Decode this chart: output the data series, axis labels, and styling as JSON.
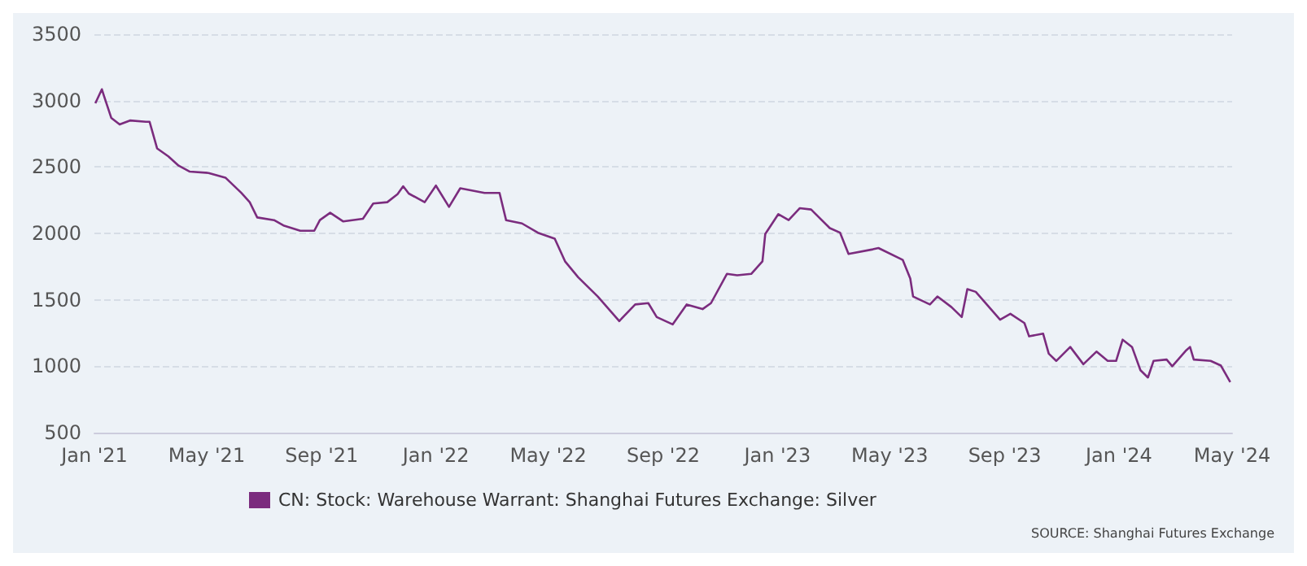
{
  "chart_data": {
    "type": "line",
    "x": [
      "2021-01-02",
      "2021-01-09",
      "2021-01-11",
      "2021-01-19",
      "2021-01-28",
      "2021-02-08",
      "2021-02-25",
      "2021-03-01",
      "2021-03-09",
      "2021-03-21",
      "2021-04-01",
      "2021-04-13",
      "2021-05-03",
      "2021-05-21",
      "2021-06-07",
      "2021-06-16",
      "2021-06-24",
      "2021-07-12",
      "2021-07-22",
      "2021-08-09",
      "2021-08-24",
      "2021-08-30",
      "2021-09-10",
      "2021-09-24",
      "2021-10-15",
      "2021-10-26",
      "2021-11-10",
      "2021-11-21",
      "2021-11-27",
      "2021-12-03",
      "2021-12-20",
      "2022-01-01",
      "2022-01-15",
      "2022-01-27",
      "2022-02-22",
      "2022-03-10",
      "2022-03-17",
      "2022-04-03",
      "2022-04-20",
      "2022-05-08",
      "2022-05-19",
      "2022-06-02",
      "2022-06-23",
      "2022-07-16",
      "2022-08-02",
      "2022-08-16",
      "2022-08-25",
      "2022-09-11",
      "2022-09-26",
      "2022-10-13",
      "2022-10-22",
      "2022-11-08",
      "2022-11-19",
      "2022-12-04",
      "2022-12-16",
      "2022-12-19",
      "2023-01-02",
      "2023-01-13",
      "2023-01-25",
      "2023-02-06",
      "2023-02-26",
      "2023-03-09",
      "2023-03-18",
      "2023-04-13",
      "2023-04-19",
      "2023-05-15",
      "2023-05-23",
      "2023-05-26",
      "2023-06-13",
      "2023-06-21",
      "2023-07-06",
      "2023-07-17",
      "2023-07-23",
      "2023-08-01",
      "2023-08-27",
      "2023-09-07",
      "2023-09-22",
      "2023-09-27",
      "2023-10-12",
      "2023-10-18",
      "2023-10-26",
      "2023-11-10",
      "2023-11-24",
      "2023-12-08",
      "2023-12-20",
      "2023-12-29",
      "2024-01-05",
      "2024-01-15",
      "2024-01-24",
      "2024-02-01",
      "2024-02-07",
      "2024-02-21",
      "2024-02-27",
      "2024-03-13",
      "2024-03-17",
      "2024-03-21",
      "2024-04-08",
      "2024-04-19",
      "2024-04-29"
    ],
    "series": [
      {
        "name": "CN: Stock: Warehouse Warrant: Shanghai Futures Exchange: Silver",
        "color": "#7b2c7e",
        "values": [
          2980,
          3085,
          3040,
          2870,
          2820,
          2850,
          2840,
          2840,
          2640,
          2580,
          2510,
          2465,
          2455,
          2420,
          2305,
          2235,
          2120,
          2100,
          2060,
          2020,
          2020,
          2100,
          2155,
          2090,
          2110,
          2225,
          2235,
          2295,
          2355,
          2300,
          2235,
          2360,
          2200,
          2340,
          2305,
          2305,
          2100,
          2075,
          2005,
          1960,
          1790,
          1670,
          1525,
          1340,
          1465,
          1475,
          1370,
          1315,
          1465,
          1430,
          1475,
          1695,
          1685,
          1695,
          1790,
          1995,
          2145,
          2100,
          2190,
          2180,
          2040,
          2005,
          1845,
          1880,
          1890,
          1800,
          1660,
          1525,
          1465,
          1525,
          1445,
          1370,
          1580,
          1560,
          1350,
          1395,
          1325,
          1225,
          1245,
          1095,
          1040,
          1145,
          1015,
          1110,
          1040,
          1040,
          1200,
          1145,
          970,
          915,
          1040,
          1050,
          1000,
          1120,
          1145,
          1050,
          1040,
          1005,
          880
        ]
      }
    ],
    "xlim": [
      "2021-01-01",
      "2024-05-01"
    ],
    "xticks": [
      {
        "value": "2021-01-01",
        "label": "Jan '21"
      },
      {
        "value": "2021-05-01",
        "label": "May '21"
      },
      {
        "value": "2021-09-01",
        "label": "Sep '21"
      },
      {
        "value": "2022-01-01",
        "label": "Jan '22"
      },
      {
        "value": "2022-05-01",
        "label": "May '22"
      },
      {
        "value": "2022-09-01",
        "label": "Sep '22"
      },
      {
        "value": "2023-01-01",
        "label": "Jan '23"
      },
      {
        "value": "2023-05-01",
        "label": "May '23"
      },
      {
        "value": "2023-09-01",
        "label": "Sep '23"
      },
      {
        "value": "2024-01-01",
        "label": "Jan '24"
      },
      {
        "value": "2024-05-01",
        "label": "May '24"
      }
    ],
    "ylim": [
      500,
      3500
    ],
    "yticks": [
      500,
      1000,
      1500,
      2000,
      2500,
      3000,
      3500
    ],
    "grid": "y",
    "legend": "bottom",
    "annotations": [
      "SOURCE: Shanghai Futures Exchange"
    ]
  }
}
